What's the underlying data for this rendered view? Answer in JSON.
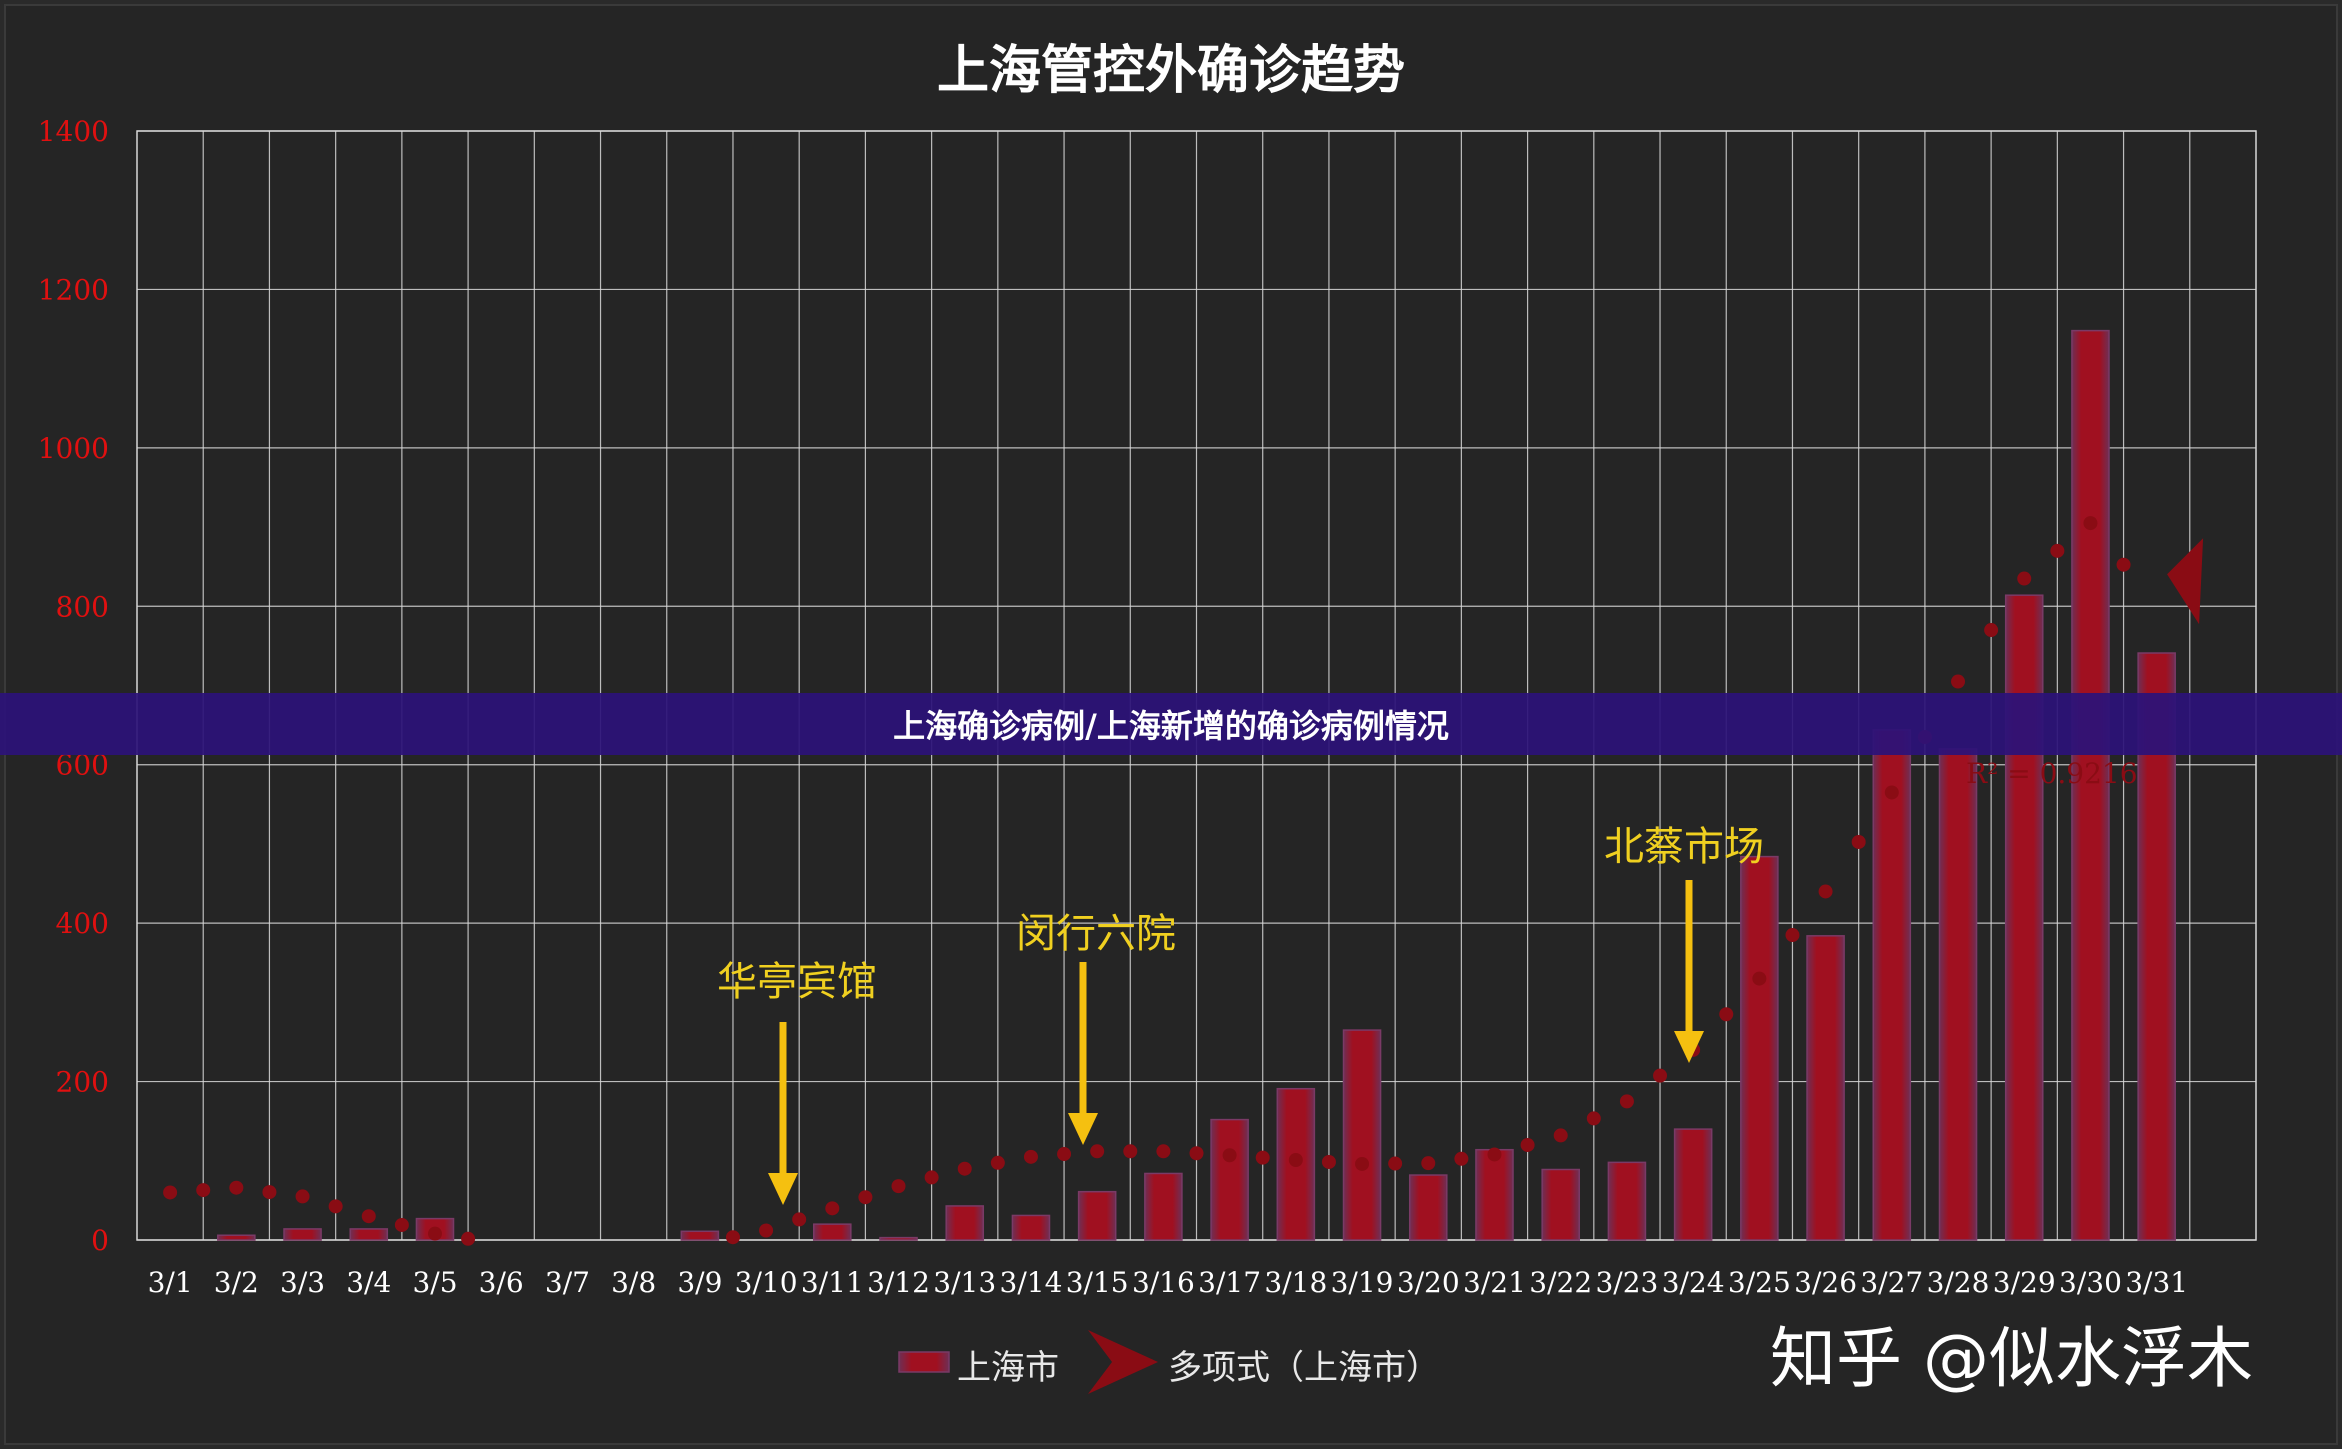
{
  "chart_data": {
    "type": "bar",
    "title": "上海管控外确诊趋势",
    "categories": [
      "3/1",
      "3/2",
      "3/3",
      "3/4",
      "3/5",
      "3/6",
      "3/7",
      "3/8",
      "3/9",
      "3/10",
      "3/11",
      "3/12",
      "3/13",
      "3/14",
      "3/15",
      "3/16",
      "3/17",
      "3/18",
      "3/19",
      "3/20",
      "3/21",
      "3/22",
      "3/23",
      "3/24",
      "3/25",
      "3/26",
      "3/27",
      "3/28",
      "3/29",
      "3/30",
      "3/31"
    ],
    "series": [
      {
        "name": "上海市",
        "values": [
          0,
          6,
          14,
          14,
          27,
          0,
          0,
          0,
          11,
          0,
          20,
          3,
          43,
          31,
          61,
          84,
          152,
          191,
          265,
          82,
          114,
          89,
          98,
          140,
          484,
          384,
          644,
          620,
          814,
          1148,
          741
        ],
        "color": "#a01020"
      },
      {
        "name": "多项式（上海市）",
        "type": "trendline",
        "values": [
          60,
          66,
          55,
          30,
          8,
          -5,
          -10,
          -12,
          -5,
          12,
          40,
          68,
          90,
          105,
          112,
          112,
          107,
          101,
          96,
          97,
          108,
          132,
          175,
          240,
          330,
          440,
          565,
          705,
          835,
          905,
          800
        ],
        "color": "#8a0c14"
      }
    ],
    "ylim": [
      0,
      1400
    ],
    "yticks": [
      0,
      200,
      400,
      600,
      800,
      1000,
      1200,
      1400
    ],
    "grid": true,
    "legend_position": "bottom",
    "r_squared_label": "R² = 0.9216",
    "annotations": [
      {
        "text": "华亭宾馆",
        "category": "3/10"
      },
      {
        "text": "闵行六院",
        "category": "3/15"
      },
      {
        "text": "北蔡市场",
        "category": "3/24"
      }
    ],
    "colors": {
      "background": "#252525",
      "grid": "#d8d8d8",
      "tick": "#e01010",
      "bar": "#a01020",
      "trend": "#8a0c14",
      "annotation": "#f0d020",
      "arrow": "#f5c010",
      "caption_band": "#2c1278"
    }
  },
  "caption": "上海确诊病例/上海新增的确诊病例情况",
  "watermark": "知乎 @似水浮木"
}
